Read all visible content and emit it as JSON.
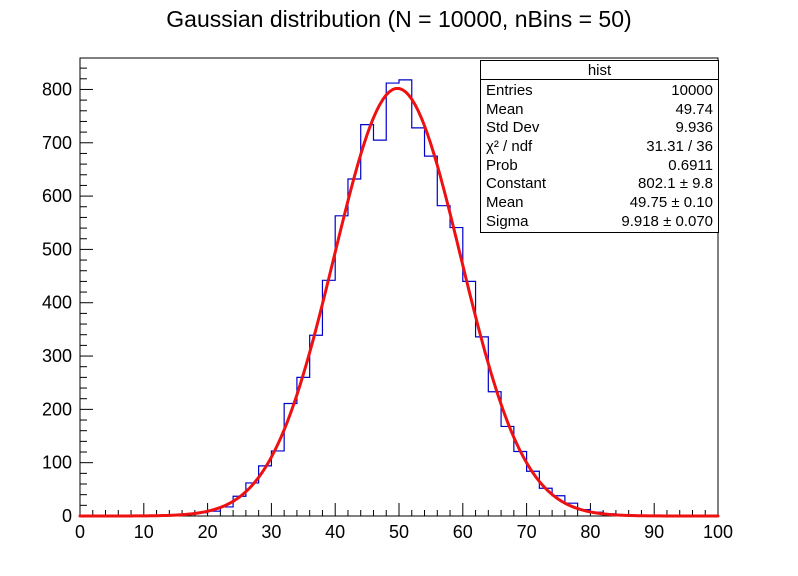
{
  "title": "Gaussian distribution (N = 10000, nBins = 50)",
  "stats_box": {
    "title": "hist",
    "rows": [
      {
        "label": "Entries",
        "value": "10000"
      },
      {
        "label": "Mean",
        "value": "49.74"
      },
      {
        "label": "Std Dev",
        "value": "9.936"
      },
      {
        "label": "χ² / ndf",
        "value": "31.31 / 36"
      },
      {
        "label": "Prob",
        "value": "0.6911"
      },
      {
        "label": "Constant",
        "value": "802.1 ± 9.8"
      },
      {
        "label": "Mean",
        "value": "49.75 ± 0.10"
      },
      {
        "label": "Sigma",
        "value": "9.918 ± 0.070"
      }
    ]
  },
  "chart_data": {
    "type": "bar",
    "subtype": "histogram-with-gaussian-fit",
    "title": "Gaussian distribution (N = 10000, nBins = 50)",
    "xlabel": "",
    "ylabel": "",
    "grid": false,
    "legend_position": "none",
    "x_range": [
      0,
      100
    ],
    "y_range": [
      0,
      859
    ],
    "n_bins": 50,
    "bin_start": 0,
    "bin_width": 2,
    "bin_values": [
      0,
      0,
      0,
      0,
      0,
      0,
      0,
      2,
      4,
      6,
      9,
      17,
      37,
      62,
      94,
      122,
      211,
      260,
      339,
      442,
      563,
      632,
      734,
      705,
      812,
      818,
      728,
      675,
      582,
      541,
      440,
      336,
      233,
      168,
      121,
      84,
      52,
      38,
      24,
      12,
      7,
      4,
      1,
      0,
      0,
      0,
      0,
      0,
      0,
      0
    ],
    "fit": {
      "type": "gaussian",
      "constant": 802.1,
      "mean": 49.75,
      "sigma": 9.918
    },
    "x_ticks_major": [
      0,
      10,
      20,
      30,
      40,
      50,
      60,
      70,
      80,
      90,
      100
    ],
    "x_minor_step": 2,
    "y_ticks_major": [
      0,
      100,
      200,
      300,
      400,
      500,
      600,
      700,
      800
    ],
    "y_minor_step": 20,
    "colors": {
      "histogram_line": "#0000cc",
      "fit_line": "#ee1111",
      "axis": "#000000",
      "background": "#ffffff"
    }
  }
}
